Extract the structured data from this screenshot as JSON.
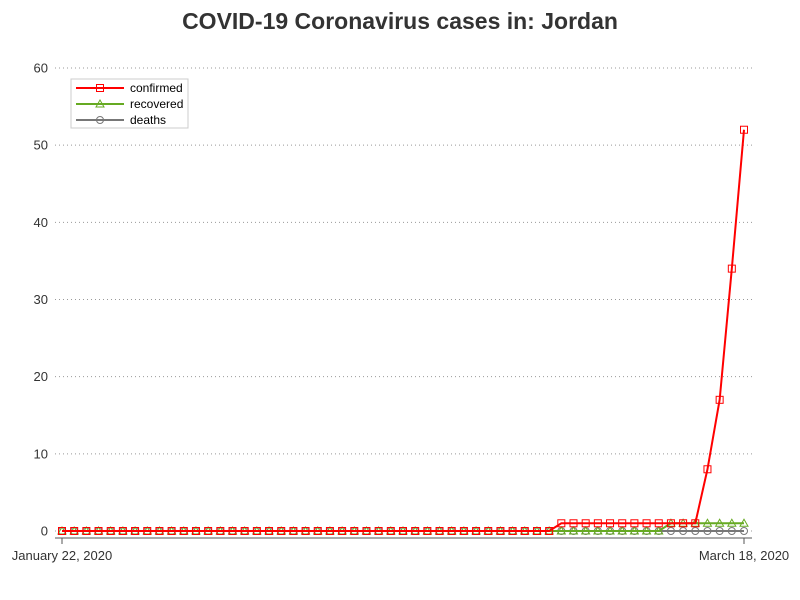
{
  "chart_data": {
    "type": "line",
    "title": "COVID-19 Coronavirus cases in: Jordan",
    "xlabel": "",
    "ylabel": "",
    "x_tick_labels": [
      "January 22, 2020",
      "March 18, 2020"
    ],
    "x_range": [
      "2020-01-22",
      "2020-03-18"
    ],
    "ylim": [
      0,
      60
    ],
    "y_ticks": [
      0,
      10,
      20,
      30,
      40,
      50,
      60
    ],
    "grid": "horizontal dotted",
    "legend_position": "top-left",
    "series": [
      {
        "name": "confirmed",
        "color": "#ff0000",
        "marker": "square",
        "values": [
          0,
          0,
          0,
          0,
          0,
          0,
          0,
          0,
          0,
          0,
          0,
          0,
          0,
          0,
          0,
          0,
          0,
          0,
          0,
          0,
          0,
          0,
          0,
          0,
          0,
          0,
          0,
          0,
          0,
          0,
          0,
          0,
          0,
          0,
          0,
          0,
          0,
          0,
          0,
          0,
          0,
          1,
          1,
          1,
          1,
          1,
          1,
          1,
          1,
          1,
          1,
          1,
          1,
          8,
          17,
          34,
          52
        ]
      },
      {
        "name": "recovered",
        "color": "#66aa22",
        "marker": "triangle",
        "values": [
          0,
          0,
          0,
          0,
          0,
          0,
          0,
          0,
          0,
          0,
          0,
          0,
          0,
          0,
          0,
          0,
          0,
          0,
          0,
          0,
          0,
          0,
          0,
          0,
          0,
          0,
          0,
          0,
          0,
          0,
          0,
          0,
          0,
          0,
          0,
          0,
          0,
          0,
          0,
          0,
          0,
          0,
          0,
          0,
          0,
          0,
          0,
          0,
          0,
          0,
          1,
          1,
          1,
          1,
          1,
          1,
          1
        ]
      },
      {
        "name": "deaths",
        "color": "#777777",
        "marker": "circle",
        "values": [
          0,
          0,
          0,
          0,
          0,
          0,
          0,
          0,
          0,
          0,
          0,
          0,
          0,
          0,
          0,
          0,
          0,
          0,
          0,
          0,
          0,
          0,
          0,
          0,
          0,
          0,
          0,
          0,
          0,
          0,
          0,
          0,
          0,
          0,
          0,
          0,
          0,
          0,
          0,
          0,
          0,
          0,
          0,
          0,
          0,
          0,
          0,
          0,
          0,
          0,
          0,
          0,
          0,
          0,
          0,
          0,
          0
        ]
      }
    ]
  }
}
